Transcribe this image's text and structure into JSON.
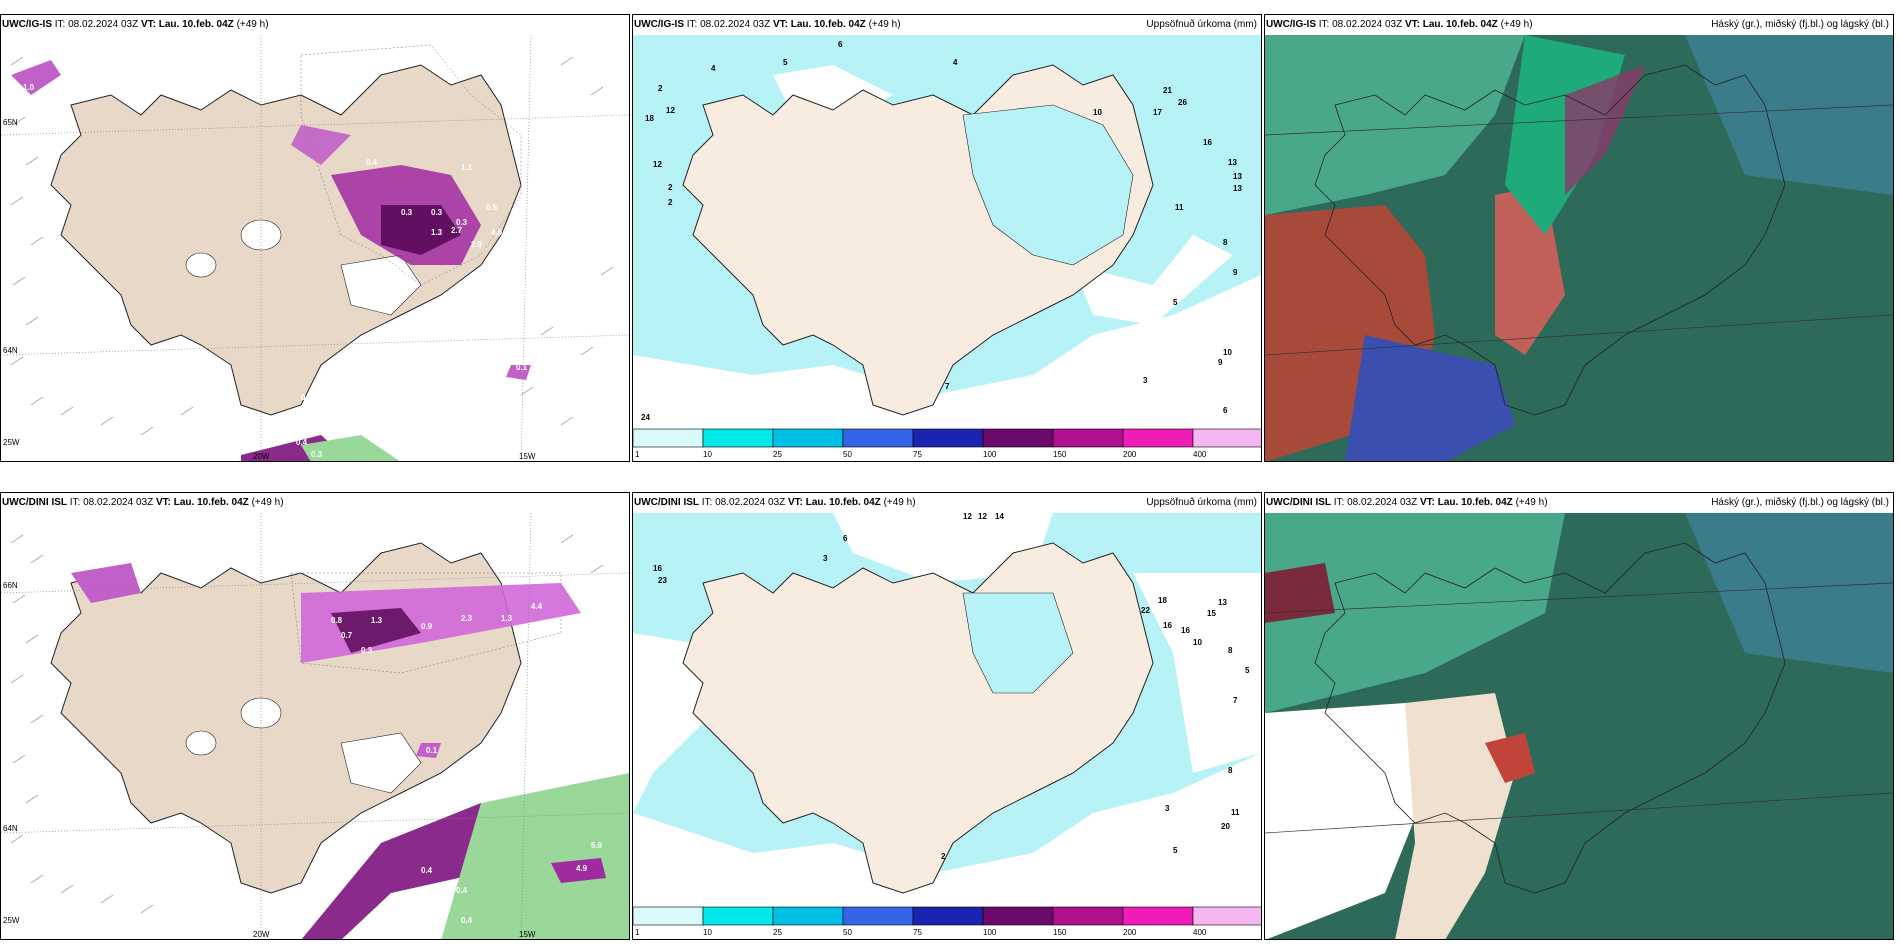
{
  "panels": [
    {
      "model": "UWC/IG-IS",
      "it_label": "IT: 08.02.2024 03Z",
      "vt_label": "VT: Lau. 10.feb. 04Z",
      "lead": "(+49 h)",
      "right_title": "",
      "lat_labels": [
        "65N",
        "64N"
      ],
      "lon_labels": [
        "25W",
        "20W",
        "15W"
      ],
      "values": [
        "1.0",
        "0.4",
        "0.3",
        "0.3",
        "0.5",
        "0.3",
        "1.3",
        "2.7",
        "2.9",
        "4.6",
        "2.2",
        "1.1",
        "0.1",
        "0.4",
        "0.3",
        "0.1"
      ]
    },
    {
      "model": "UWC/IG-IS",
      "it_label": "IT: 08.02.2024 03Z",
      "vt_label": "VT: Lau. 10.feb. 04Z",
      "lead": "(+49 h)",
      "right_title": "Uppsöfnuð úrkoma (mm)",
      "values": [
        "6",
        "4",
        "5",
        "2",
        "12",
        "18",
        "12",
        "2",
        "2",
        "4",
        "10",
        "17",
        "21",
        "26",
        "16",
        "13",
        "13",
        "13",
        "11",
        "9",
        "8",
        "6",
        "24",
        "7",
        "5",
        "3",
        "10",
        "9"
      ]
    },
    {
      "model": "UWC/IG-IS",
      "it_label": "IT: 08.02.2024 03Z",
      "vt_label": "VT: Lau. 10.feb. 04Z",
      "lead": "(+49 h)",
      "right_title": "Háský (gr.), miðský (fj.bl.) og lágský (bl.)"
    },
    {
      "model": "UWC/DINI ISL",
      "it_label": "IT: 08.02.2024 03Z",
      "vt_label": "VT: Lau. 10.feb. 04Z",
      "lead": "(+49 h)",
      "right_title": "",
      "lat_labels": [
        "66N",
        "64N"
      ],
      "lon_labels": [
        "25W",
        "20W",
        "15W"
      ],
      "values": [
        "0.8",
        "0.7",
        "1.3",
        "0.9",
        "0.3",
        "2.3",
        "4.4",
        "1.3",
        "0.1",
        "0.4",
        "0.4",
        "0.3",
        "5.6",
        "4.9",
        "0.4"
      ]
    },
    {
      "model": "UWC/DINI ISL",
      "it_label": "IT: 08.02.2024 03Z",
      "vt_label": "VT: Lau. 10.feb. 04Z",
      "lead": "(+49 h)",
      "right_title": "Uppsöfnuð úrkoma (mm)",
      "values": [
        "12",
        "12",
        "14",
        "16",
        "23",
        "6",
        "3",
        "18",
        "16",
        "22",
        "15",
        "13",
        "16",
        "10",
        "8",
        "5",
        "7",
        "8",
        "11",
        "20",
        "5",
        "3",
        "2"
      ]
    },
    {
      "model": "UWC/DINI ISL",
      "it_label": "IT: 08.02.2024 03Z",
      "vt_label": "VT: Lau. 10.feb. 04Z",
      "lead": "(+49 h)",
      "right_title": "Háský (gr.), miðský (fj.bl.) og lágský (bl.)"
    }
  ],
  "colorbar": {
    "ticks": [
      "1",
      "10",
      "25",
      "50",
      "75",
      "100",
      "150",
      "200",
      "400"
    ],
    "colors": [
      "#d8fafa",
      "#00e8e8",
      "#00bfe6",
      "#3565e6",
      "#1a24b0",
      "#6a0a6a",
      "#b0108e",
      "#f01cb8",
      "#f4b6f0"
    ]
  },
  "colors": {
    "land": "#f8ebe0",
    "land_wind": "#e8d8c8",
    "sea_precip": "#b6f2f6",
    "cloud_high": "#1f8a5a",
    "cloud_mid": "#c0443a",
    "cloud_low": "#3a4fb0"
  }
}
